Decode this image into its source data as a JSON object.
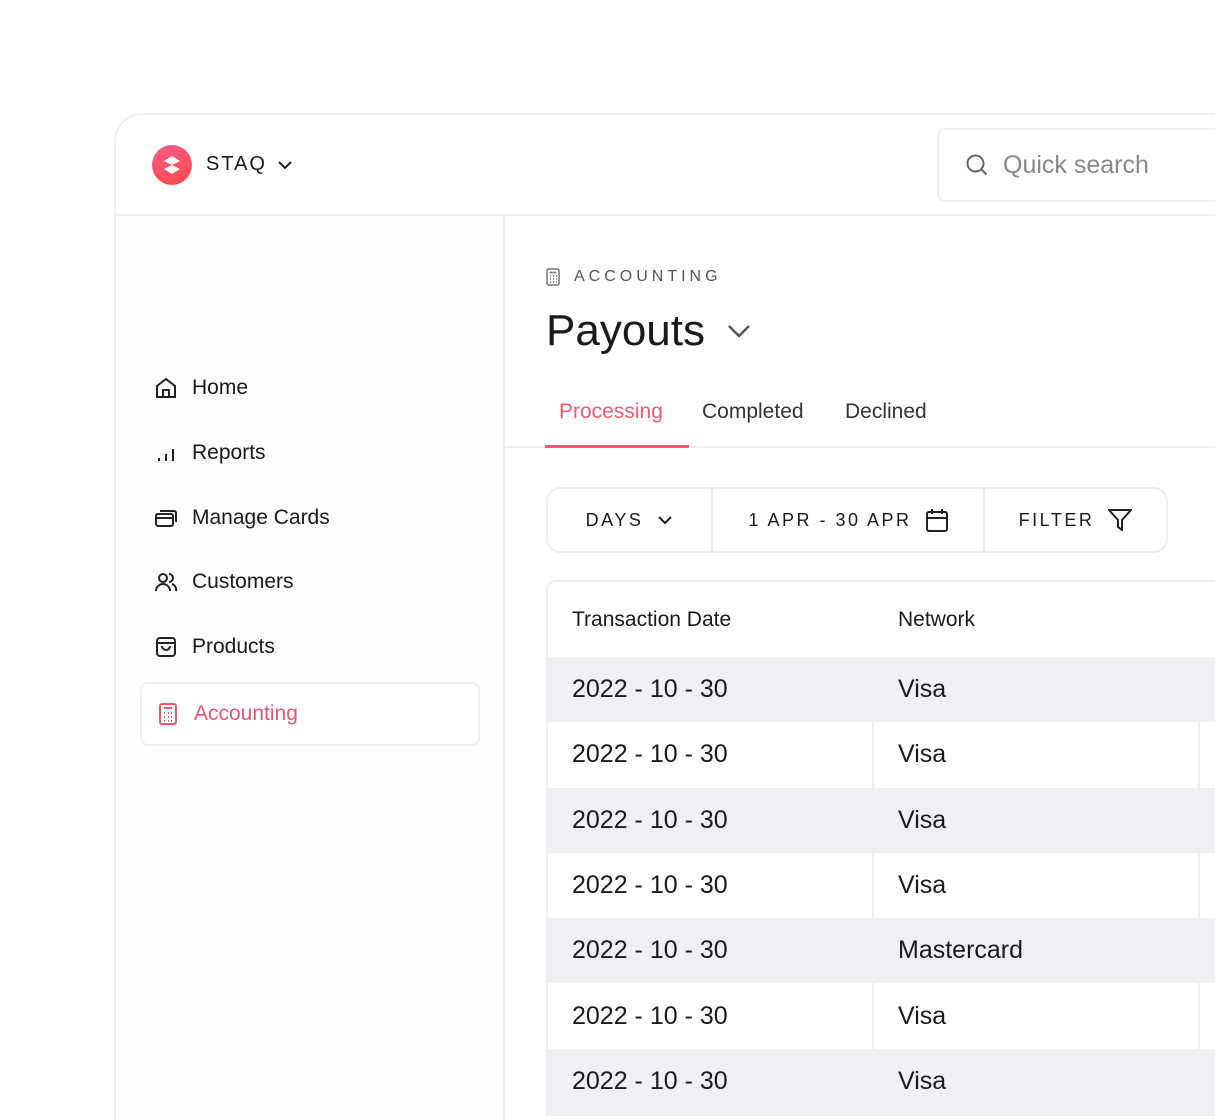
{
  "brand": {
    "name": "STAQ"
  },
  "search": {
    "placeholder": "Quick search"
  },
  "sidebar": {
    "items": [
      {
        "label": "Home",
        "icon": "home-icon"
      },
      {
        "label": "Reports",
        "icon": "bar-chart-icon"
      },
      {
        "label": "Manage Cards",
        "icon": "cards-icon"
      },
      {
        "label": "Customers",
        "icon": "users-icon"
      },
      {
        "label": "Products",
        "icon": "bag-icon"
      },
      {
        "label": "Accounting",
        "icon": "calculator-icon",
        "active": true
      }
    ]
  },
  "page": {
    "breadcrumb": "ACCOUNTING",
    "title": "Payouts"
  },
  "tabs": [
    {
      "label": "Processing",
      "active": true
    },
    {
      "label": "Completed"
    },
    {
      "label": "Declined"
    }
  ],
  "filters": {
    "days": "DAYS",
    "range": "1 APR - 30 APR",
    "filter": "FILTER"
  },
  "table": {
    "columns": [
      "Transaction Date",
      "Network"
    ],
    "rows": [
      [
        "2022 - 10 - 30",
        "Visa"
      ],
      [
        "2022 - 10 - 30",
        "Visa"
      ],
      [
        "2022 - 10 - 30",
        "Visa"
      ],
      [
        "2022 - 10 - 30",
        "Visa"
      ],
      [
        "2022 - 10 - 30",
        "Mastercard"
      ],
      [
        "2022 - 10 - 30",
        "Visa"
      ],
      [
        "2022 - 10 - 30",
        "Visa"
      ]
    ]
  },
  "colors": {
    "accent": "#ec5a70",
    "row_alt": "#f0f0f2"
  }
}
